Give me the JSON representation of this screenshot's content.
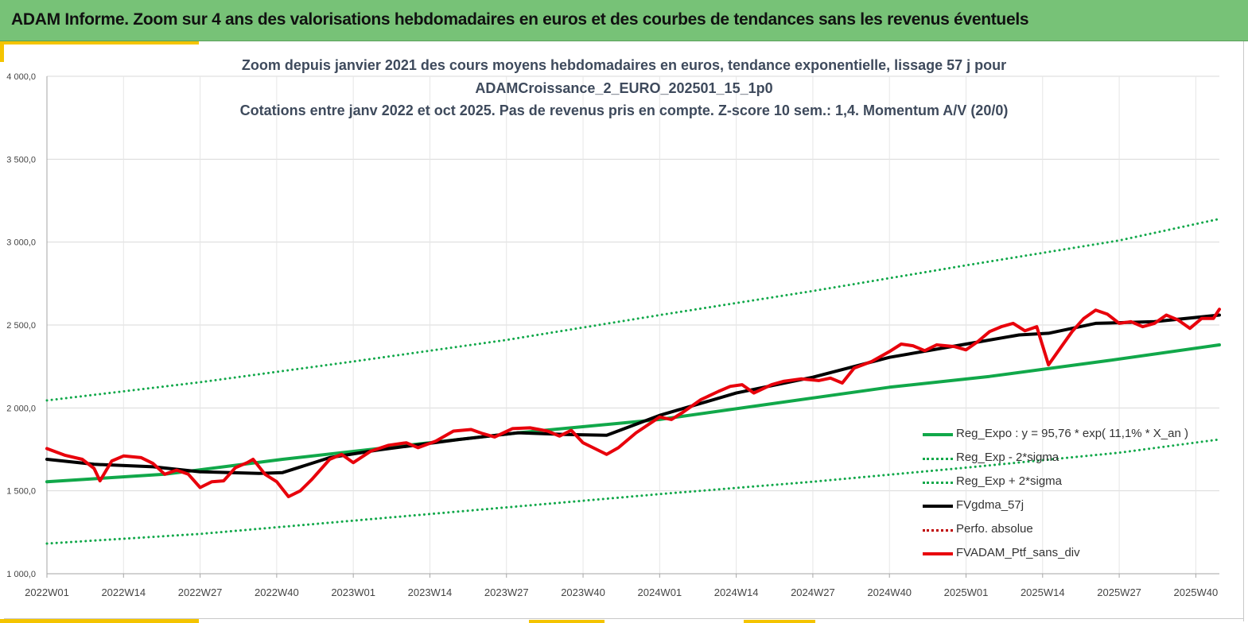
{
  "banner": {
    "title": "ADAM Informe. Zoom sur 4 ans des valorisations hebdomadaires en euros et des courbes de tendances sans les revenus éventuels"
  },
  "colors": {
    "banner_bg": "#77c277",
    "accent": "#f4c400",
    "trend_green": "#11a84a",
    "moving_average": "#000000",
    "portfolio": "#e8000b",
    "perfo_absolue": "#c00000"
  },
  "chart_data": {
    "type": "line",
    "title_lines": [
      "Zoom depuis janvier 2021 des cours moyens hebdomadaires  en euros, tendance exponentielle, lissage 57 j pour",
      "ADAMCroissance_2_EURO_202501_15_1p0",
      "Cotations  entre janv 2022 et oct 2025. Pas de revenus pris en compte. Z-score 10 sem.: 1,4. Momentum A/V (20/0)"
    ],
    "xlabel": "",
    "ylabel": "",
    "x_tick_labels": [
      "2022W01",
      "2022W14",
      "2022W27",
      "2022W40",
      "2023W01",
      "2023W14",
      "2023W27",
      "2023W40",
      "2024W01",
      "2024W14",
      "2024W27",
      "2024W40",
      "2025W01",
      "2025W14",
      "2025W27",
      "2025W40"
    ],
    "x_tick_weeks": [
      0,
      13,
      26,
      39,
      52,
      65,
      78,
      91,
      104,
      117,
      130,
      143,
      156,
      169,
      182,
      195
    ],
    "x_range_weeks": [
      0,
      199
    ],
    "y_tick_labels": [
      "1 000,0",
      "1 500,0",
      "2 000,0",
      "2 500,0",
      "3 000,0",
      "3 500,0",
      "4 000,0"
    ],
    "y_tick_values": [
      1000,
      1500,
      2000,
      2500,
      3000,
      3500,
      4000
    ],
    "ylim": [
      1000,
      4000
    ],
    "grid": true,
    "legend_position": "bottom-right",
    "legend": [
      {
        "label": "Reg_Expo : y = 95,76 * exp( 11,1% *  X_an )",
        "style": "solid",
        "color": "#11a84a"
      },
      {
        "label": "Reg_Exp - 2*sigma",
        "style": "dotted",
        "color": "#11a84a"
      },
      {
        "label": "Reg_Exp + 2*sigma",
        "style": "dotted",
        "color": "#11a84a"
      },
      {
        "label": "FVgdma_57j",
        "style": "solid",
        "color": "#000000"
      },
      {
        "label": "Perfo. absolue",
        "style": "dotted",
        "color": "#c00000"
      },
      {
        "label": "FVADAM_Ptf_sans_div",
        "style": "solid",
        "color": "#e8000b"
      }
    ],
    "series": [
      {
        "name": "Reg_Expo : y = 95,76 * exp( 11,1% *  X_an )",
        "style": "solid",
        "color": "#11a84a",
        "width": 4,
        "points": [
          [
            0,
            1555
          ],
          [
            20,
            1600
          ],
          [
            40,
            1690
          ],
          [
            60,
            1770
          ],
          [
            80,
            1850
          ],
          [
            104,
            1930
          ],
          [
            130,
            2060
          ],
          [
            143,
            2125
          ],
          [
            160,
            2190
          ],
          [
            180,
            2285
          ],
          [
            199,
            2380
          ]
        ]
      },
      {
        "name": "Reg_Exp - 2*sigma",
        "style": "dotted",
        "color": "#11a84a",
        "width": 3,
        "points": [
          [
            0,
            1182
          ],
          [
            26,
            1240
          ],
          [
            52,
            1320
          ],
          [
            78,
            1400
          ],
          [
            104,
            1480
          ],
          [
            130,
            1555
          ],
          [
            156,
            1640
          ],
          [
            182,
            1730
          ],
          [
            199,
            1810
          ]
        ]
      },
      {
        "name": "Reg_Exp + 2*sigma",
        "style": "dotted",
        "color": "#11a84a",
        "width": 3,
        "points": [
          [
            0,
            2045
          ],
          [
            26,
            2155
          ],
          [
            52,
            2280
          ],
          [
            78,
            2410
          ],
          [
            104,
            2560
          ],
          [
            130,
            2705
          ],
          [
            156,
            2860
          ],
          [
            182,
            3010
          ],
          [
            199,
            3140
          ]
        ]
      },
      {
        "name": "FVgdma_57j",
        "style": "solid",
        "color": "#000000",
        "width": 4,
        "points": [
          [
            0,
            1690
          ],
          [
            8,
            1660
          ],
          [
            18,
            1645
          ],
          [
            26,
            1615
          ],
          [
            36,
            1605
          ],
          [
            40,
            1610
          ],
          [
            48,
            1700
          ],
          [
            56,
            1745
          ],
          [
            70,
            1810
          ],
          [
            80,
            1850
          ],
          [
            88,
            1840
          ],
          [
            95,
            1835
          ],
          [
            104,
            1955
          ],
          [
            117,
            2090
          ],
          [
            130,
            2185
          ],
          [
            143,
            2305
          ],
          [
            156,
            2385
          ],
          [
            165,
            2440
          ],
          [
            170,
            2450
          ],
          [
            178,
            2510
          ],
          [
            188,
            2520
          ],
          [
            199,
            2560
          ]
        ]
      },
      {
        "name": "FVADAM_Ptf_sans_div",
        "style": "solid",
        "color": "#e8000b",
        "width": 4,
        "points": [
          [
            0,
            1755
          ],
          [
            3,
            1715
          ],
          [
            6,
            1690
          ],
          [
            8,
            1635
          ],
          [
            9,
            1560
          ],
          [
            11,
            1680
          ],
          [
            13,
            1710
          ],
          [
            16,
            1700
          ],
          [
            18,
            1665
          ],
          [
            20,
            1600
          ],
          [
            22,
            1625
          ],
          [
            24,
            1600
          ],
          [
            26,
            1520
          ],
          [
            28,
            1555
          ],
          [
            30,
            1560
          ],
          [
            32,
            1640
          ],
          [
            34,
            1670
          ],
          [
            35,
            1690
          ],
          [
            37,
            1600
          ],
          [
            39,
            1555
          ],
          [
            41,
            1465
          ],
          [
            43,
            1500
          ],
          [
            45,
            1570
          ],
          [
            48,
            1690
          ],
          [
            50,
            1720
          ],
          [
            52,
            1670
          ],
          [
            55,
            1740
          ],
          [
            58,
            1775
          ],
          [
            61,
            1790
          ],
          [
            63,
            1760
          ],
          [
            66,
            1800
          ],
          [
            69,
            1860
          ],
          [
            72,
            1870
          ],
          [
            74,
            1845
          ],
          [
            76,
            1825
          ],
          [
            79,
            1875
          ],
          [
            82,
            1880
          ],
          [
            85,
            1860
          ],
          [
            87,
            1830
          ],
          [
            89,
            1865
          ],
          [
            91,
            1790
          ],
          [
            93,
            1755
          ],
          [
            95,
            1720
          ],
          [
            97,
            1760
          ],
          [
            100,
            1850
          ],
          [
            104,
            1945
          ],
          [
            106,
            1930
          ],
          [
            108,
            1975
          ],
          [
            111,
            2050
          ],
          [
            114,
            2100
          ],
          [
            116,
            2130
          ],
          [
            118,
            2140
          ],
          [
            120,
            2090
          ],
          [
            123,
            2140
          ],
          [
            125,
            2160
          ],
          [
            128,
            2175
          ],
          [
            131,
            2165
          ],
          [
            133,
            2180
          ],
          [
            135,
            2150
          ],
          [
            137,
            2240
          ],
          [
            140,
            2280
          ],
          [
            143,
            2340
          ],
          [
            145,
            2385
          ],
          [
            147,
            2375
          ],
          [
            149,
            2345
          ],
          [
            151,
            2380
          ],
          [
            154,
            2370
          ],
          [
            156,
            2350
          ],
          [
            158,
            2400
          ],
          [
            160,
            2460
          ],
          [
            162,
            2490
          ],
          [
            164,
            2510
          ],
          [
            166,
            2465
          ],
          [
            168,
            2490
          ],
          [
            170,
            2260
          ],
          [
            172,
            2360
          ],
          [
            174,
            2460
          ],
          [
            176,
            2540
          ],
          [
            178,
            2590
          ],
          [
            180,
            2565
          ],
          [
            182,
            2510
          ],
          [
            184,
            2520
          ],
          [
            186,
            2490
          ],
          [
            188,
            2510
          ],
          [
            190,
            2560
          ],
          [
            192,
            2530
          ],
          [
            194,
            2480
          ],
          [
            196,
            2540
          ],
          [
            198,
            2540
          ],
          [
            199,
            2595
          ]
        ]
      }
    ]
  }
}
